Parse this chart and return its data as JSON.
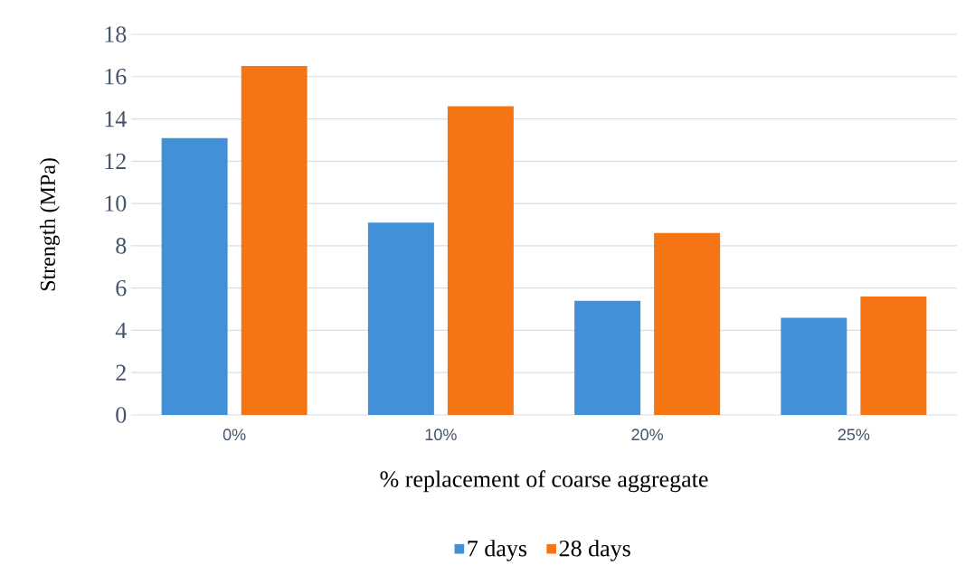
{
  "chart_data": {
    "type": "bar",
    "xlabel": "% replacement of coarse aggregate",
    "ylabel": "Strength (MPa)",
    "categories": [
      "0%",
      "10%",
      "20%",
      "25%"
    ],
    "series": [
      {
        "name": "7 days",
        "color": "#4190d8",
        "values": [
          13.1,
          9.1,
          5.4,
          4.6
        ]
      },
      {
        "name": "28 days",
        "color": "#f57413",
        "values": [
          16.5,
          14.6,
          8.6,
          5.6
        ]
      }
    ],
    "ylim": [
      0,
      18
    ],
    "yticks": [
      0,
      2,
      4,
      6,
      8,
      10,
      12,
      14,
      16,
      18
    ],
    "grid": "y",
    "legend": "bottom"
  }
}
